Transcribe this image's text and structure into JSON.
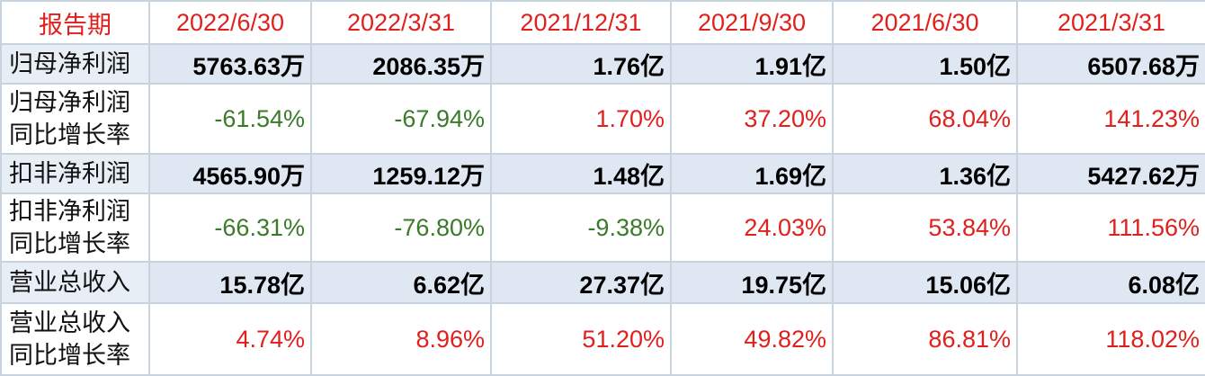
{
  "table": {
    "header": [
      "报告期",
      "2022/6/30",
      "2022/3/31",
      "2021/12/31",
      "2021/9/30",
      "2021/6/30",
      "2021/3/31"
    ],
    "header_color": "#e0201c",
    "rows": [
      {
        "label": [
          "归母净利润"
        ],
        "bold": true,
        "values": [
          "5763.63万",
          "2086.35万",
          "1.76亿",
          "1.91亿",
          "1.50亿",
          "6507.68万"
        ]
      },
      {
        "label": [
          "归母净利润",
          "同比增长率"
        ],
        "bold": false,
        "values": [
          "-61.54%",
          "-67.94%",
          "1.70%",
          "37.20%",
          "68.04%",
          "141.23%"
        ],
        "colors": [
          "#3b7a2a",
          "#3b7a2a",
          "#e0201c",
          "#e0201c",
          "#e0201c",
          "#e0201c"
        ]
      },
      {
        "label": [
          "扣非净利润"
        ],
        "bold": true,
        "values": [
          "4565.90万",
          "1259.12万",
          "1.48亿",
          "1.69亿",
          "1.36亿",
          "5427.62万"
        ]
      },
      {
        "label": [
          "扣非净利润",
          "同比增长率"
        ],
        "bold": false,
        "values": [
          "-66.31%",
          "-76.80%",
          "-9.38%",
          "24.03%",
          "53.84%",
          "111.56%"
        ],
        "colors": [
          "#3b7a2a",
          "#3b7a2a",
          "#3b7a2a",
          "#e0201c",
          "#e0201c",
          "#e0201c"
        ]
      },
      {
        "label": [
          "营业总收入"
        ],
        "bold": true,
        "values": [
          "15.78亿",
          "6.62亿",
          "27.37亿",
          "19.75亿",
          "15.06亿",
          "6.08亿"
        ]
      },
      {
        "label": [
          "营业总收入",
          "同比增长率"
        ],
        "bold": false,
        "values": [
          "4.74%",
          "8.96%",
          "51.20%",
          "49.82%",
          "86.81%",
          "118.02%"
        ],
        "colors": [
          "#e0201c",
          "#e0201c",
          "#e0201c",
          "#e0201c",
          "#e0201c",
          "#e0201c"
        ]
      }
    ]
  }
}
